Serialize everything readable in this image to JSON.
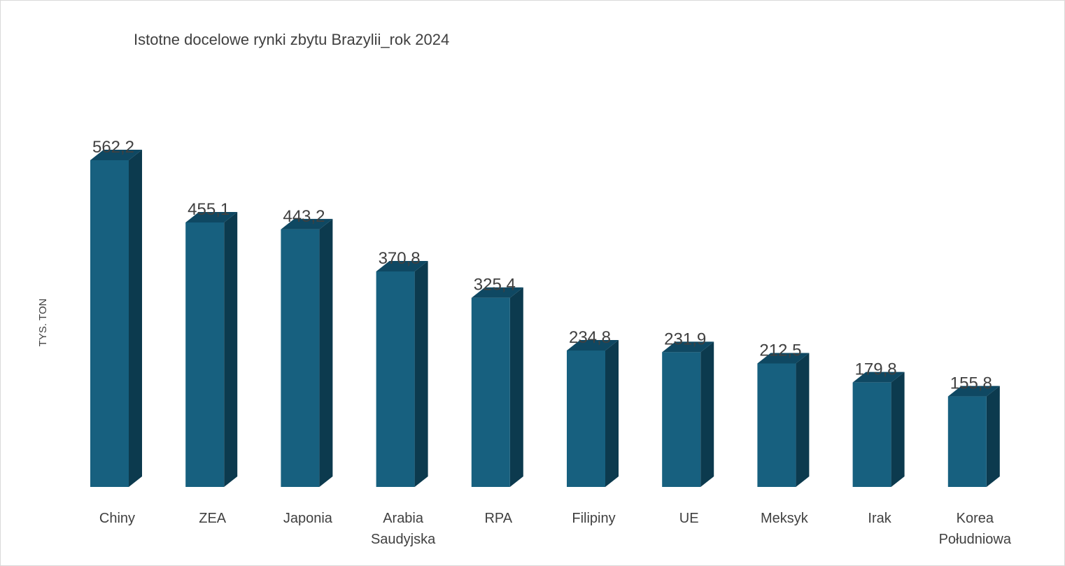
{
  "chart_data": {
    "type": "bar",
    "title": "Istotne docelowe rynki zbytu Brazylii_rok 2024",
    "xlabel": "",
    "ylabel": "TYS. TON",
    "categories": [
      "Chiny",
      "ZEA",
      "Japonia",
      "Arabia Saudyjska",
      "RPA",
      "Filipiny",
      "UE",
      "Meksyk",
      "Irak",
      "Korea Południowa"
    ],
    "category_lines": [
      [
        "Chiny"
      ],
      [
        "ZEA"
      ],
      [
        "Japonia"
      ],
      [
        "Arabia",
        "Saudyjska"
      ],
      [
        "RPA"
      ],
      [
        "Filipiny"
      ],
      [
        "UE"
      ],
      [
        "Meksyk"
      ],
      [
        "Irak"
      ],
      [
        "Korea",
        "Południowa"
      ]
    ],
    "values": [
      562.2,
      455.1,
      443.2,
      370.8,
      325.4,
      234.8,
      231.9,
      212.5,
      179.8,
      155.8
    ],
    "value_labels": [
      "562,2",
      "455,1",
      "443,2",
      "370,8",
      "325,4",
      "234,8",
      "231,9",
      "212,5",
      "179,8",
      "155,8"
    ],
    "ylim": [
      0,
      600
    ],
    "grid": false,
    "legend": "none",
    "style": "3d-column",
    "colors": {
      "bar_front": "#17607f",
      "bar_side": "#0c3a4e",
      "bar_top": "#0f4862",
      "text": "#404040"
    }
  }
}
